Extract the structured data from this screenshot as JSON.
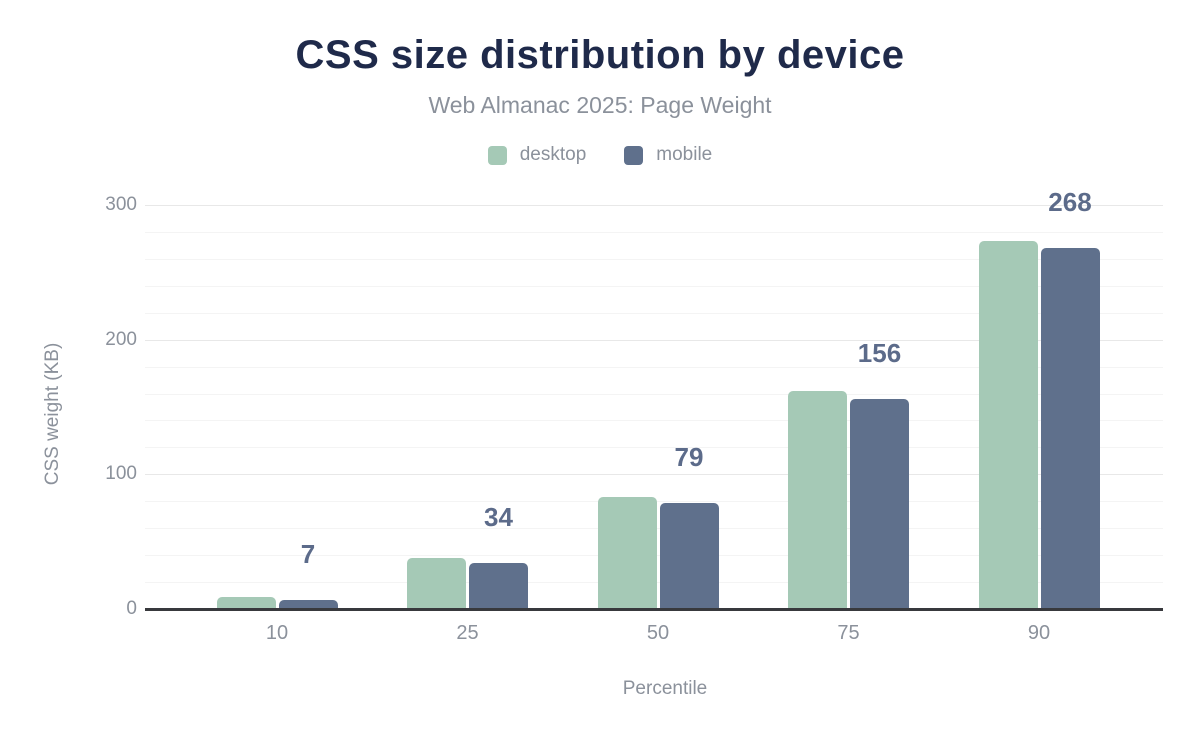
{
  "header": {
    "title": "CSS size distribution by device",
    "subtitle": "Web Almanac 2025: Page Weight"
  },
  "chart_data": {
    "type": "bar",
    "title": "CSS size distribution by device",
    "subtitle": "Web Almanac 2025: Page Weight",
    "categories": [
      "10",
      "25",
      "50",
      "75",
      "90"
    ],
    "series": [
      {
        "name": "desktop",
        "color": "#a5c9b6",
        "values": [
          9,
          38,
          83,
          162,
          273
        ]
      },
      {
        "name": "mobile",
        "color": "#5f708c",
        "values": [
          7,
          34,
          79,
          156,
          268
        ]
      }
    ],
    "data_labels": {
      "series": "mobile",
      "values": [
        "7",
        "34",
        "79",
        "156",
        "268"
      ],
      "color": "#5c6b8a"
    },
    "xlabel": "Percentile",
    "ylabel": "CSS weight (KB)",
    "ylim": [
      0,
      300
    ],
    "yticks": [
      "0",
      "100",
      "200",
      "300"
    ],
    "minor_grid_step_kb": 20,
    "major_grid_step_kb": 100,
    "grid": true,
    "legend_position": "top",
    "colors": {
      "title": "#1f2a4a",
      "muted_text": "#8b919b",
      "axis_line": "#38393d",
      "major_grid": "#e8e8e8",
      "minor_grid": "#f4f4f4"
    }
  }
}
